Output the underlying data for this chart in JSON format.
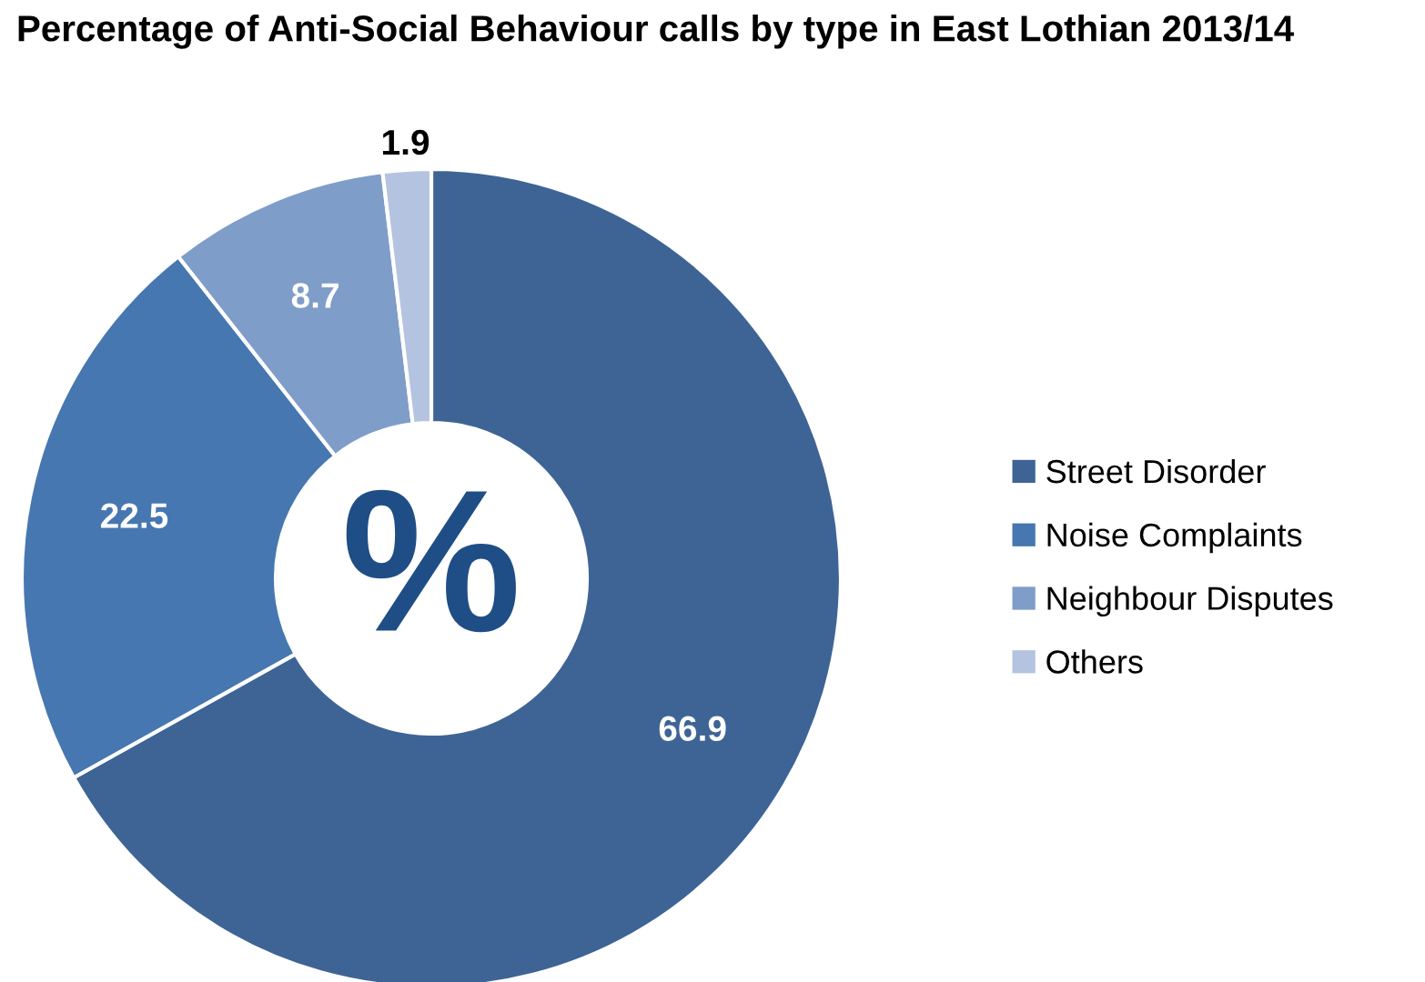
{
  "chart_data": {
    "type": "donut",
    "title": "Percentage of Anti-Social Behaviour calls by type in East Lothian 2013/14",
    "categories": [
      "Street Disorder",
      "Noise Complaints",
      "Neighbour Disputes",
      "Others"
    ],
    "values": [
      66.9,
      22.5,
      8.7,
      1.9
    ],
    "colors": [
      "#3e6496",
      "#4677b0",
      "#7f9dc9",
      "#b4c3e0"
    ],
    "data_labels": true,
    "legend": "right",
    "annotations": [
      "%"
    ]
  }
}
